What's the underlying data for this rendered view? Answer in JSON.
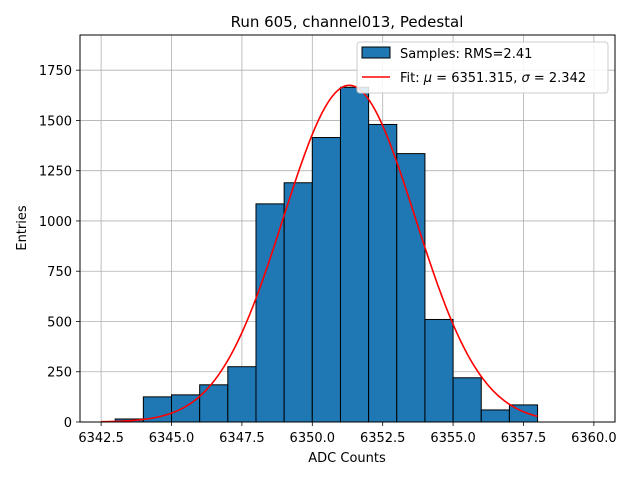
{
  "chart_data": {
    "type": "histogram",
    "title": "Run 605, channel013, Pedestal",
    "xlabel": "ADC Counts",
    "ylabel": "Entries",
    "xlim": [
      6341.75,
      6360.75
    ],
    "ylim": [
      0,
      1925
    ],
    "xticks": [
      6342.5,
      6345.0,
      6347.5,
      6350.0,
      6352.5,
      6355.0,
      6357.5,
      6360.0
    ],
    "xtick_labels": [
      "6342.5",
      "6345.0",
      "6347.5",
      "6350.0",
      "6352.5",
      "6355.0",
      "6357.5",
      "6360.0"
    ],
    "yticks": [
      0,
      250,
      500,
      750,
      1000,
      1250,
      1500,
      1750
    ],
    "ytick_labels": [
      "0",
      "250",
      "500",
      "750",
      "1000",
      "1250",
      "1500",
      "1750"
    ],
    "grid": true,
    "legend_position": "top-right",
    "bar_color": "#1f77b4",
    "fit_color": "#ff0000",
    "bins": [
      {
        "x0": 6342.0,
        "x1": 6343.0,
        "count": 0
      },
      {
        "x0": 6343.0,
        "x1": 6344.0,
        "count": 15
      },
      {
        "x0": 6344.0,
        "x1": 6345.0,
        "count": 125
      },
      {
        "x0": 6345.0,
        "x1": 6346.0,
        "count": 135
      },
      {
        "x0": 6346.0,
        "x1": 6347.0,
        "count": 185
      },
      {
        "x0": 6347.0,
        "x1": 6348.0,
        "count": 275
      },
      {
        "x0": 6348.0,
        "x1": 6349.0,
        "count": 1085
      },
      {
        "x0": 6349.0,
        "x1": 6350.0,
        "count": 1190
      },
      {
        "x0": 6350.0,
        "x1": 6351.0,
        "count": 1415
      },
      {
        "x0": 6351.0,
        "x1": 6352.0,
        "count": 1665
      },
      {
        "x0": 6352.0,
        "x1": 6353.0,
        "count": 1480
      },
      {
        "x0": 6353.0,
        "x1": 6354.0,
        "count": 1335
      },
      {
        "x0": 6354.0,
        "x1": 6355.0,
        "count": 510
      },
      {
        "x0": 6355.0,
        "x1": 6356.0,
        "count": 220
      },
      {
        "x0": 6356.0,
        "x1": 6357.0,
        "count": 60
      },
      {
        "x0": 6357.0,
        "x1": 6358.0,
        "count": 85
      }
    ],
    "fit": {
      "mu": 6351.315,
      "sigma": 2.342,
      "amplitude": 1675,
      "x_range": [
        6342.5,
        6358.0
      ]
    },
    "legend": {
      "samples_label": "Samples: RMS=2.41",
      "fit_label_prefix": "Fit: ",
      "fit_mu_symbol": "μ",
      "fit_mu_text": " = 6351.315, ",
      "fit_sigma_symbol": "σ",
      "fit_sigma_text": " = 2.342"
    }
  }
}
